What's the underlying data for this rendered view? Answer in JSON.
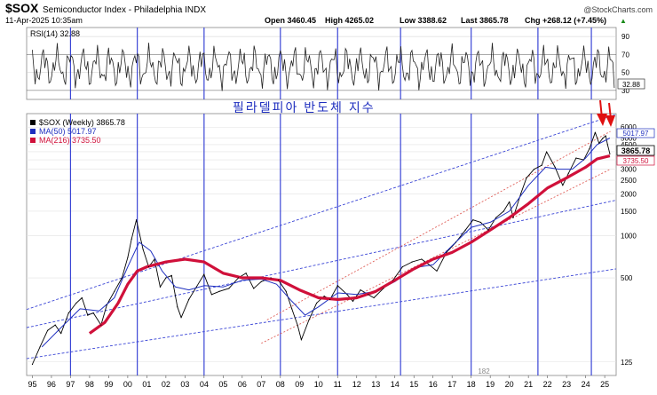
{
  "header": {
    "symbol": "$SOX",
    "name": "Semiconductor Index - Philadelphia INDX",
    "date": "11-Apr-2025 10:35am",
    "open": "Open 3460.45",
    "high": "High 4265.02",
    "low": "Low 3388.62",
    "last": "Last 3865.78",
    "chg": "Chg +268.12 (+7.45%)",
    "chg_arrow": "▲",
    "watermark": "@StockCharts.com"
  },
  "rsi_panel": {
    "label": "RSI(14) 32.88",
    "levels": [
      90,
      70,
      50,
      30
    ],
    "current_badge": "32.88"
  },
  "price_panel": {
    "annotation": "필라델피아 반도체 지수",
    "legend": [
      {
        "label": "$SOX (Weekly) 3865.78",
        "color": "#000000"
      },
      {
        "label": "MA(50) 5017.97",
        "color": "#1f2fbf"
      },
      {
        "label": "MA(216) 3735.50",
        "color": "#d0103a"
      }
    ],
    "badges": [
      {
        "label": "5017.97",
        "kind": "ma50"
      },
      {
        "label": "3865.78",
        "kind": "price"
      },
      {
        "label": "3735.50",
        "kind": "ma216"
      }
    ],
    "bottom_marker": "182"
  },
  "chart_data": {
    "type": "line",
    "scale": "log",
    "ylim": [
      100,
      7500
    ],
    "y_ticks": [
      6000,
      5000,
      4500,
      4000,
      3500,
      3000,
      2500,
      2000,
      1500,
      1000,
      500,
      125
    ],
    "x_labels": [
      "95",
      "96",
      "97",
      "98",
      "99",
      "00",
      "01",
      "02",
      "03",
      "04",
      "05",
      "06",
      "07",
      "08",
      "09",
      "10",
      "11",
      "12",
      "13",
      "14",
      "15",
      "16",
      "17",
      "18",
      "19",
      "20",
      "21",
      "22",
      "23",
      "24",
      "25"
    ],
    "x_range": [
      1994.7,
      2025.6
    ],
    "vertical_lines": [
      1997.0,
      2000.5,
      2004.0,
      2008.0,
      2011.0,
      2014.3,
      2018.0,
      2021.5,
      2024.3
    ],
    "series": [
      {
        "name": "$SOX (Weekly)",
        "color": "#000000",
        "x": [
          1995.0,
          1995.4,
          1995.8,
          1996.2,
          1996.5,
          1996.9,
          1997.3,
          1997.6,
          1997.9,
          1998.2,
          1998.6,
          1998.9,
          1999.3,
          1999.7,
          2000.0,
          2000.2,
          2000.45,
          2000.8,
          2001.1,
          2001.4,
          2001.7,
          2002.0,
          2002.3,
          2002.6,
          2002.8,
          2003.2,
          2003.6,
          2004.0,
          2004.4,
          2004.8,
          2005.3,
          2005.8,
          2006.2,
          2006.6,
          2007.0,
          2007.5,
          2007.9,
          2008.3,
          2008.6,
          2008.9,
          2009.1,
          2009.5,
          2009.9,
          2010.3,
          2010.6,
          2011.0,
          2011.5,
          2011.8,
          2012.2,
          2012.6,
          2012.9,
          2013.4,
          2013.9,
          2014.4,
          2014.9,
          2015.4,
          2015.8,
          2016.2,
          2016.7,
          2017.2,
          2017.7,
          2018.1,
          2018.5,
          2018.9,
          2019.3,
          2019.7,
          2020.0,
          2020.2,
          2020.6,
          2020.9,
          2021.3,
          2021.7,
          2021.95,
          2022.4,
          2022.8,
          2023.1,
          2023.5,
          2023.9,
          2024.2,
          2024.5,
          2024.7,
          2024.9,
          2025.05,
          2025.15,
          2025.27
        ],
        "values": [
          120,
          160,
          210,
          230,
          200,
          280,
          330,
          360,
          270,
          280,
          230,
          320,
          400,
          500,
          700,
          950,
          1300,
          800,
          600,
          680,
          430,
          500,
          520,
          310,
          260,
          350,
          430,
          530,
          380,
          400,
          420,
          500,
          540,
          420,
          470,
          500,
          480,
          400,
          300,
          230,
          180,
          250,
          330,
          370,
          350,
          440,
          380,
          340,
          410,
          380,
          360,
          420,
          480,
          600,
          650,
          680,
          620,
          560,
          760,
          900,
          1100,
          1300,
          1250,
          1100,
          1350,
          1500,
          1750,
          1350,
          2000,
          2600,
          3000,
          3200,
          4000,
          3100,
          2300,
          2800,
          3600,
          3500,
          4200,
          5500,
          4600,
          5000,
          5200,
          4500,
          3865.78
        ]
      },
      {
        "name": "MA(50)",
        "color": "#1f2fbf",
        "x": [
          1995.5,
          1996.5,
          1997.5,
          1998.5,
          1999.3,
          2000.0,
          2000.6,
          2001.2,
          2001.8,
          2002.5,
          2003.2,
          2004.0,
          2005.0,
          2006.0,
          2007.0,
          2007.8,
          2008.6,
          2009.3,
          2010.0,
          2011.0,
          2012.0,
          2013.0,
          2014.0,
          2015.0,
          2016.0,
          2017.0,
          2018.0,
          2019.0,
          2020.0,
          2021.0,
          2021.9,
          2022.6,
          2023.3,
          2024.0,
          2024.6,
          2025.27
        ],
        "values": [
          160,
          220,
          300,
          290,
          360,
          600,
          900,
          780,
          560,
          430,
          410,
          440,
          430,
          480,
          490,
          450,
          340,
          270,
          310,
          390,
          380,
          400,
          470,
          590,
          620,
          850,
          1150,
          1250,
          1500,
          2300,
          3100,
          3000,
          3000,
          3600,
          4500,
          5017.97
        ]
      },
      {
        "name": "MA(216)",
        "color": "#d0103a",
        "x": [
          1998.0,
          1998.8,
          1999.5,
          2000.0,
          2000.5,
          2001.0,
          2002.0,
          2003.0,
          2004.0,
          2005.0,
          2006.0,
          2007.0,
          2008.0,
          2009.0,
          2010.0,
          2011.0,
          2012.0,
          2013.0,
          2014.0,
          2015.0,
          2016.0,
          2017.0,
          2018.0,
          2019.0,
          2020.0,
          2021.0,
          2022.0,
          2023.0,
          2024.0,
          2024.6,
          2025.27
        ],
        "values": [
          200,
          240,
          330,
          450,
          560,
          600,
          650,
          680,
          650,
          540,
          500,
          500,
          480,
          410,
          360,
          350,
          360,
          400,
          480,
          580,
          680,
          760,
          900,
          1100,
          1350,
          1700,
          2200,
          2600,
          3100,
          3550,
          3735.5
        ]
      }
    ]
  }
}
